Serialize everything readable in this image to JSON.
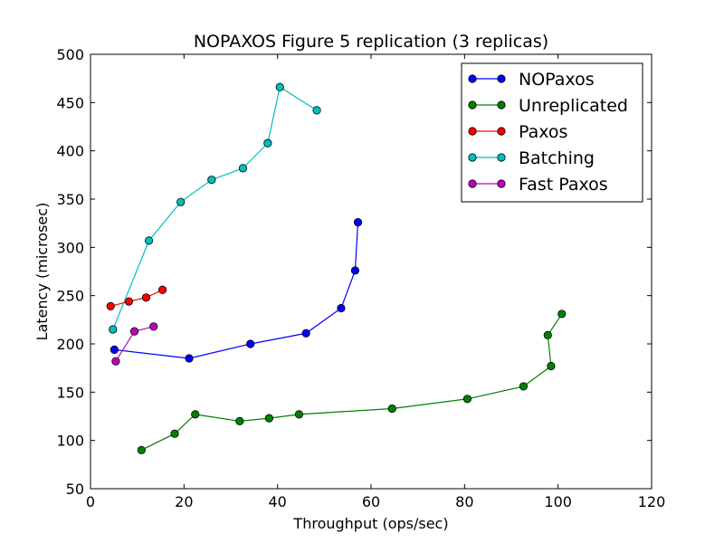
{
  "chart_data": {
    "type": "line",
    "title": "NOPAXOS Figure 5 replication (3 replicas)",
    "xlabel": "Throughput (ops/sec)",
    "ylabel": "Latency (microsec)",
    "xlim": [
      0,
      120
    ],
    "ylim": [
      50,
      500
    ],
    "xticks": [
      0,
      20,
      40,
      60,
      80,
      100,
      120
    ],
    "yticks": [
      50,
      100,
      150,
      200,
      250,
      300,
      350,
      400,
      450,
      500
    ],
    "grid": false,
    "legend_position": "top-right",
    "series": [
      {
        "name": "NOPaxos",
        "color": "#0000ff",
        "points": [
          [
            5.1,
            194
          ],
          [
            21.1,
            185
          ],
          [
            34.2,
            200
          ],
          [
            46.1,
            211
          ],
          [
            53.6,
            237
          ],
          [
            56.6,
            276
          ],
          [
            57.2,
            326
          ]
        ]
      },
      {
        "name": "Unreplicated",
        "color": "#008000",
        "points": [
          [
            10.9,
            90
          ],
          [
            18.0,
            107
          ],
          [
            22.4,
            127
          ],
          [
            31.9,
            120
          ],
          [
            38.2,
            123
          ],
          [
            44.6,
            127
          ],
          [
            64.5,
            133
          ],
          [
            80.6,
            143
          ],
          [
            92.6,
            156
          ],
          [
            98.5,
            177
          ],
          [
            97.8,
            209
          ],
          [
            100.8,
            231
          ]
        ]
      },
      {
        "name": "Paxos",
        "color": "#ff0000",
        "points": [
          [
            4.3,
            239
          ],
          [
            8.2,
            244
          ],
          [
            11.9,
            248
          ],
          [
            15.4,
            256
          ]
        ]
      },
      {
        "name": "Batching",
        "color": "#00bfbf",
        "points": [
          [
            4.8,
            215
          ],
          [
            12.5,
            307
          ],
          [
            19.3,
            347
          ],
          [
            25.9,
            370
          ],
          [
            32.6,
            382
          ],
          [
            37.9,
            408
          ],
          [
            40.5,
            466
          ],
          [
            48.4,
            442
          ]
        ]
      },
      {
        "name": "Fast Paxos",
        "color": "#bf00bf",
        "points": [
          [
            5.4,
            182
          ],
          [
            9.4,
            213
          ],
          [
            13.5,
            218
          ]
        ]
      }
    ]
  }
}
